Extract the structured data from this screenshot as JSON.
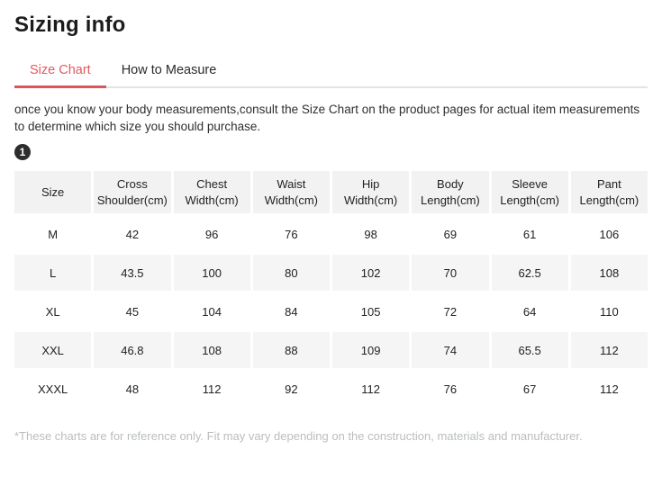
{
  "page": {
    "title": "Sizing info"
  },
  "tabs": [
    {
      "label": "Size Chart",
      "active": true
    },
    {
      "label": "How to Measure",
      "active": false
    }
  ],
  "description": "once you know your body measurements,consult the Size Chart on the product pages for actual item measurements to determine which size you should purchase.",
  "badge": "1",
  "size_table": {
    "columns": [
      "Size",
      "Cross Shoulder(cm)",
      "Chest Width(cm)",
      "Waist Width(cm)",
      "Hip Width(cm)",
      "Body Length(cm)",
      "Sleeve Length(cm)",
      "Pant Length(cm)"
    ],
    "rows": [
      [
        "M",
        "42",
        "96",
        "76",
        "98",
        "69",
        "61",
        "106"
      ],
      [
        "L",
        "43.5",
        "100",
        "80",
        "102",
        "70",
        "62.5",
        "108"
      ],
      [
        "XL",
        "45",
        "104",
        "84",
        "105",
        "72",
        "64",
        "110"
      ],
      [
        "XXL",
        "46.8",
        "108",
        "88",
        "109",
        "74",
        "65.5",
        "112"
      ],
      [
        "XXXL",
        "48",
        "112",
        "92",
        "112",
        "76",
        "67",
        "112"
      ]
    ]
  },
  "footnote": "*These charts are for reference only. Fit may vary depending on the construction, materials and manufacturer.",
  "colors": {
    "accent": "#e05a60",
    "tab_underline": "#d9585f",
    "header_bg": "#f2f2f2",
    "row_alt_bg": "#f5f5f5",
    "footnote_text": "#babebe",
    "badge_bg": "#2d2d2d"
  }
}
